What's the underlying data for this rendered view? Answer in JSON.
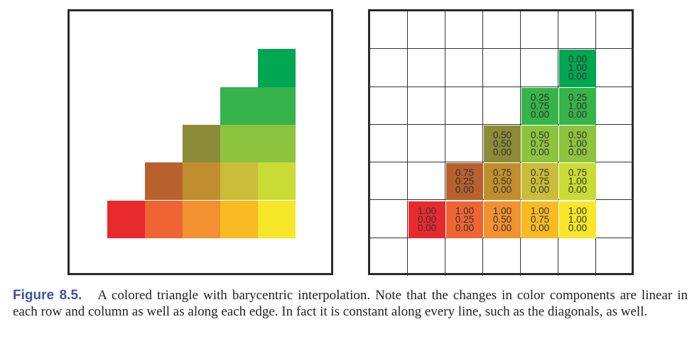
{
  "figure": {
    "label": "Figure 8.5.",
    "caption_text": "A colored triangle with barycentric interpolation. Note that the changes in color components are linear in each row and column as well as along each edge. In fact it is constant along every line, such as the diagonals, as well."
  },
  "triangle": {
    "rows": [
      {
        "row": 1,
        "start_col": 5,
        "cells": [
          {
            "color": "#00a651",
            "values": [
              "0.00",
              "1.00",
              "0.00"
            ]
          }
        ]
      },
      {
        "row": 2,
        "start_col": 4,
        "cells": [
          {
            "color": "#36b34a",
            "values": [
              "0.25",
              "0.75",
              "0.00"
            ]
          },
          {
            "color": "#36b34a",
            "values": [
              "0.25",
              "1.00",
              "0.00"
            ]
          }
        ]
      },
      {
        "row": 3,
        "start_col": 3,
        "cells": [
          {
            "color": "#8c8b38",
            "values": [
              "0.50",
              "0.50",
              "0.00"
            ]
          },
          {
            "color": "#8cc43f",
            "values": [
              "0.50",
              "0.75",
              "0.00"
            ]
          },
          {
            "color": "#8cc43f",
            "values": [
              "0.50",
              "1.00",
              "0.00"
            ]
          }
        ]
      },
      {
        "row": 4,
        "start_col": 2,
        "cells": [
          {
            "color": "#b8612e",
            "values": [
              "0.75",
              "0.25",
              "0.00"
            ]
          },
          {
            "color": "#c08e2f",
            "values": [
              "0.75",
              "0.50",
              "0.00"
            ]
          },
          {
            "color": "#c9bd3a",
            "values": [
              "0.75",
              "0.75",
              "0.00"
            ]
          },
          {
            "color": "#c9dc35",
            "values": [
              "0.75",
              "1.00",
              "0.00"
            ]
          }
        ]
      },
      {
        "row": 5,
        "start_col": 1,
        "cells": [
          {
            "color": "#e82a2e",
            "values": [
              "1.00",
              "0.00",
              "0.00"
            ]
          },
          {
            "color": "#ee6533",
            "values": [
              "1.00",
              "0.25",
              "0.00"
            ]
          },
          {
            "color": "#f29130",
            "values": [
              "1.00",
              "0.50",
              "0.00"
            ]
          },
          {
            "color": "#f8bb23",
            "values": [
              "1.00",
              "0.75",
              "0.00"
            ]
          },
          {
            "color": "#f7e72a",
            "values": [
              "1.00",
              "1.00",
              "0.00"
            ]
          }
        ]
      }
    ]
  }
}
